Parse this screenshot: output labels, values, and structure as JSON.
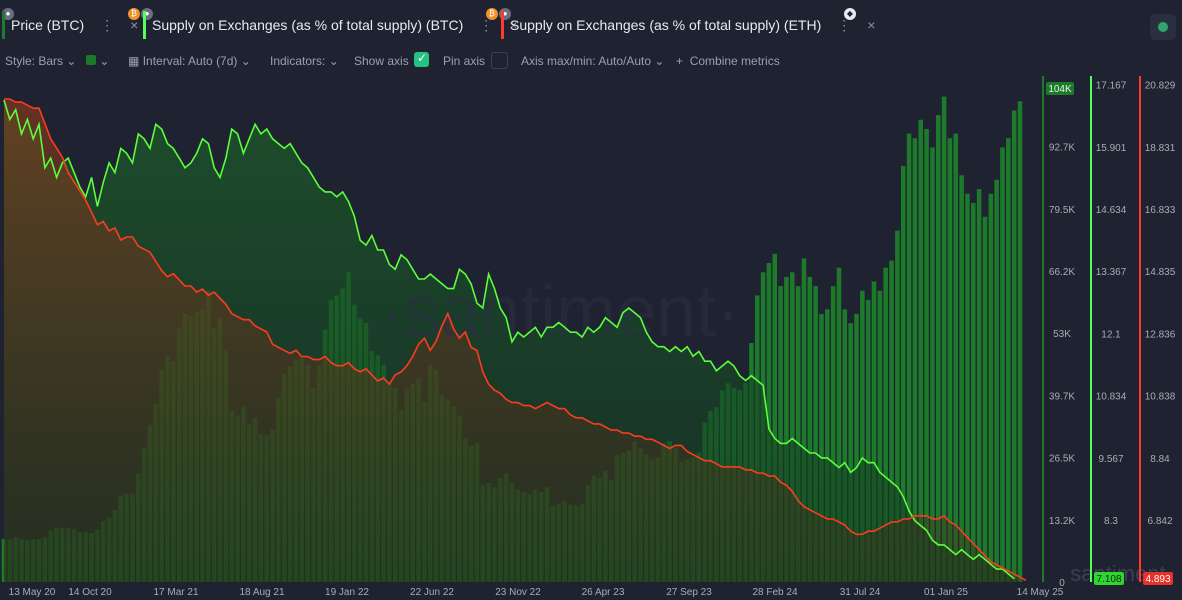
{
  "tabs": [
    {
      "label": "Price (BTC)",
      "color": "#1e7a2e"
    },
    {
      "label": "Supply on Exchanges (as % of total supply) (BTC)",
      "color": "#55ff55"
    },
    {
      "label": "Supply on Exchanges (as % of total supply) (ETH)",
      "color": "#ff3b2f"
    }
  ],
  "tab_dots": "⋮",
  "tab_close": "×",
  "toolbar": {
    "style": "Style: Bars",
    "interval": "Interval: Auto (7d)",
    "indicators": "Indicators:",
    "show_axis": "Show axis",
    "pin_axis": "Pin axis",
    "axis_maxmin": "Axis max/min: Auto/Auto",
    "combine": "Combine metrics"
  },
  "watermark": "·santiment·",
  "watermark_small": "santiment",
  "colors": {
    "price_bar": "#1c7a2a",
    "btc_line": "#5bff3a",
    "eth_line": "#ff3b1f",
    "background": "#1f2331"
  },
  "chart_data": {
    "type": "bar",
    "x_ticks": [
      "13 May 20",
      "14 Oct 20",
      "17 Mar 21",
      "18 Aug 21",
      "19 Jan 22",
      "22 Jun 22",
      "23 Nov 22",
      "26 Apr 23",
      "27 Sep 23",
      "28 Feb 24",
      "31 Jul 24",
      "01 Jan 25",
      "14 May 25"
    ],
    "axes": {
      "price": {
        "ticks": [
          "0",
          "13.2K",
          "26.5K",
          "39.7K",
          "53K",
          "66.2K",
          "79.5K",
          "92.7K",
          "104K"
        ],
        "range": [
          0,
          106000
        ],
        "current_label": "104K"
      },
      "btc_supply": {
        "ticks": [
          "8.3",
          "9.567",
          "10.834",
          "12.1",
          "13.367",
          "14.634",
          "15.901",
          "17.167"
        ],
        "range": [
          7.033,
          17.167
        ],
        "current_label": "7.108"
      },
      "eth_supply": {
        "ticks": [
          "6.842",
          "8.84",
          "10.838",
          "12.836",
          "14.835",
          "16.833",
          "18.831",
          "20.829"
        ],
        "range": [
          4.844,
          20.829
        ],
        "current_label": "4.893"
      }
    },
    "series": [
      {
        "name": "Price (BTC)",
        "type": "bar",
        "values": [
          9300,
          9200,
          9700,
          9300,
          9100,
          9200,
          9300,
          9600,
          11100,
          11800,
          11700,
          11600,
          11400,
          10700,
          10800,
          10600,
          11300,
          13200,
          14000,
          15600,
          18700,
          19100,
          19200,
          23500,
          28900,
          34000,
          38500,
          46000,
          48900,
          47800,
          55000,
          58000,
          57600,
          58400,
          59000,
          63000,
          55000,
          57000,
          50000,
          37000,
          36000,
          38000,
          34000,
          35500,
          32000,
          31800,
          33000,
          40000,
          45000,
          46600,
          48000,
          49000,
          47000,
          42000,
          47000,
          54500,
          61000,
          62000,
          63500,
          67000,
          60000,
          57000,
          56000,
          50000,
          49000,
          47000,
          43000,
          42000,
          37000,
          42000,
          43000,
          44000,
          39000,
          47000,
          46000,
          40500,
          39500,
          38000,
          36000,
          31000,
          29500,
          30000,
          21000,
          21500,
          20500,
          22500,
          23500,
          21500,
          20000,
          19500,
          19000,
          20000,
          19500,
          20500,
          16500,
          17000,
          17500,
          16800,
          16600,
          17000,
          21000,
          23000,
          22500,
          24000,
          22000,
          27500,
          28000,
          28400,
          30500,
          29000,
          27500,
          26500,
          27000,
          30000,
          30500,
          29000,
          26000,
          26500,
          27000,
          28000,
          34500,
          37000,
          37800,
          41500,
          43000,
          42000,
          41500,
          43000,
          51700,
          62000,
          67000,
          69000,
          71000,
          64000,
          66000,
          67000,
          64000,
          70000,
          66000,
          64000,
          58000,
          59000,
          64000,
          68000,
          59000,
          56000,
          58000,
          63000,
          61000,
          65000,
          63000,
          68000,
          69500,
          76000,
          90000,
          97000,
          96000,
          100000,
          98000,
          94000,
          101000,
          105000,
          96000,
          97000,
          88000,
          84000,
          82000,
          85000,
          79000,
          84000,
          87000,
          94000,
          96000,
          102000,
          104000
        ]
      },
      {
        "name": "Supply on Exchanges (as % of total supply) (BTC)",
        "type": "line",
        "values": [
          17.0,
          16.6,
          16.8,
          16.3,
          16.6,
          16.2,
          16.5,
          15.6,
          15.8,
          15.4,
          15.7,
          15.8,
          15.5,
          15.2,
          15.0,
          15.4,
          14.8,
          15.3,
          15.7,
          15.5,
          16.0,
          15.9,
          15.7,
          16.3,
          16.2,
          16.0,
          16.5,
          16.4,
          16.1,
          16.0,
          15.8,
          15.6,
          15.7,
          15.9,
          16.2,
          16.1,
          15.6,
          15.4,
          15.8,
          16.4,
          16.3,
          15.9,
          16.2,
          16.5,
          16.3,
          16.4,
          16.2,
          16.1,
          16.0,
          16.1,
          15.9,
          15.7,
          15.6,
          15.4,
          15.2,
          15.1,
          15.1,
          15.0,
          15.1,
          14.9,
          14.6,
          14.1,
          14.0,
          14.2,
          13.9,
          13.9,
          13.6,
          13.5,
          13.8,
          13.7,
          13.5,
          13.3,
          13.3,
          13.4,
          13.3,
          13.2,
          13.1,
          13.1,
          13.5,
          13.4,
          13.2,
          12.8,
          12.7,
          13.4,
          13.1,
          12.7,
          12.5,
          12.0,
          12.2,
          12.1,
          12.2,
          12.3,
          12.1,
          12.3,
          12.3,
          12.4,
          12.3,
          12.2,
          12.2,
          12.1,
          12.3,
          12.2,
          12.3,
          12.5,
          12.4,
          12.3,
          12.6,
          12.7,
          12.6,
          12.5,
          12.2,
          12.0,
          11.9,
          11.9,
          11.8,
          11.9,
          11.8,
          11.9,
          11.7,
          11.8,
          11.6,
          11.6,
          11.4,
          11.5,
          11.6,
          11.5,
          11.3,
          11.2,
          11.3,
          11.2,
          11.1,
          10.2,
          10.0,
          9.9,
          9.9,
          10.0,
          9.9,
          9.8,
          9.7,
          9.7,
          9.6,
          9.6,
          9.5,
          9.4,
          9.5,
          9.3,
          9.4,
          9.6,
          9.5,
          9.5,
          9.3,
          9.2,
          9.1,
          9.0,
          8.8,
          8.5,
          8.3,
          8.2,
          8.1,
          7.9,
          7.8,
          7.8,
          7.7,
          7.6,
          7.7,
          7.6,
          7.5,
          7.6,
          7.5,
          7.4,
          7.3,
          7.3,
          7.2,
          7.1
        ]
      },
      {
        "name": "Supply on Exchanges (as % of total supply) (ETH)",
        "type": "line",
        "values": [
          20.6,
          20.6,
          20.5,
          20.5,
          20.4,
          20.3,
          20.3,
          19.8,
          19.3,
          19.0,
          18.7,
          18.2,
          17.9,
          17.6,
          17.3,
          16.9,
          16.5,
          16.6,
          16.3,
          16.4,
          16.0,
          16.1,
          16.1,
          15.8,
          15.7,
          15.6,
          15.3,
          15.0,
          14.8,
          14.9,
          14.7,
          14.5,
          14.5,
          14.3,
          14.4,
          14.2,
          14.3,
          14.1,
          13.9,
          13.6,
          13.5,
          13.4,
          13.4,
          13.2,
          13.1,
          13.0,
          12.6,
          12.5,
          12.4,
          12.3,
          12.4,
          12.2,
          12.2,
          12.1,
          12.1,
          12.2,
          12.0,
          11.9,
          11.9,
          12.0,
          11.8,
          11.7,
          11.8,
          11.6,
          11.4,
          11.5,
          11.3,
          11.6,
          11.7,
          11.9,
          12.2,
          12.6,
          12.8,
          12.4,
          12.7,
          13.2,
          13.6,
          13.1,
          12.8,
          13.0,
          12.5,
          12.4,
          11.7,
          11.3,
          11.1,
          11.0,
          10.8,
          10.7,
          10.7,
          10.6,
          10.6,
          10.5,
          10.6,
          10.7,
          10.6,
          10.5,
          10.5,
          10.3,
          10.2,
          10.2,
          10.1,
          10.0,
          10.0,
          9.9,
          9.8,
          9.8,
          9.7,
          9.7,
          9.6,
          9.6,
          9.5,
          9.5,
          9.4,
          9.3,
          9.2,
          9.3,
          9.3,
          9.1,
          9.0,
          8.9,
          8.8,
          8.8,
          8.7,
          8.6,
          8.6,
          8.6,
          8.6,
          8.5,
          8.5,
          8.4,
          8.4,
          8.3,
          8.3,
          8.1,
          8.0,
          7.8,
          7.5,
          7.3,
          7.2,
          7.1,
          7.0,
          6.9,
          6.9,
          6.8,
          6.7,
          6.5,
          6.4,
          6.4,
          6.5,
          6.5,
          6.6,
          6.7,
          6.8,
          6.8,
          6.9,
          6.9,
          7.0,
          7.0,
          7.0,
          6.9,
          6.9,
          7.0,
          6.8,
          6.7,
          6.5,
          6.3,
          6.1,
          5.9,
          5.7,
          5.5,
          5.4,
          5.3,
          5.2,
          5.1,
          5.0,
          4.9
        ]
      }
    ]
  }
}
